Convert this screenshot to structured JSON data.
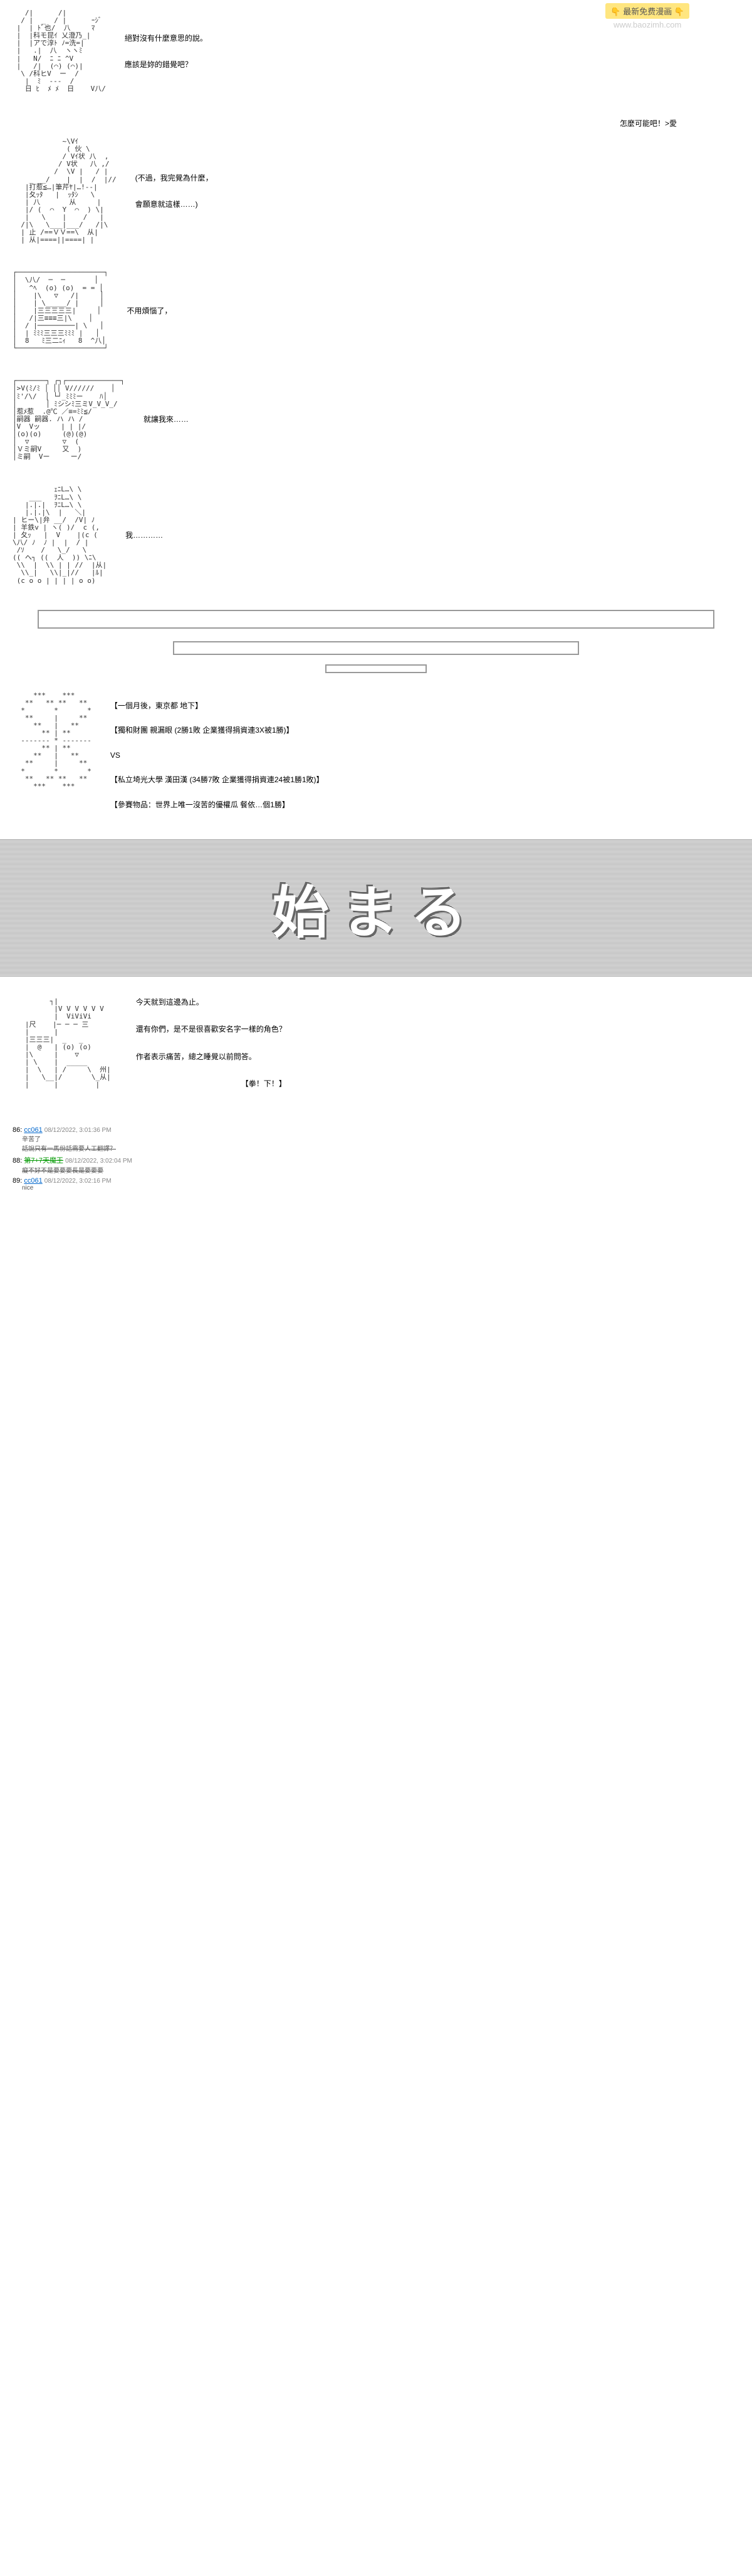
{
  "watermark": {
    "top": "👇 最新免费漫画 👇",
    "bottom": "www.baozimh.com"
  },
  "panel1": {
    "line1": "絕對沒有什麼意思的說。",
    "line2": "應該是妳的錯覺吧？",
    "line3": "怎麼可能吧！>愛"
  },
  "panel2": {
    "line1": "(不過，我完覺為什麼，",
    "line2": "會願意就這樣……)"
  },
  "panel3": {
    "line1": "不用煩惱了，"
  },
  "panel4": {
    "line1": "就讓我來……"
  },
  "panel5": {
    "line1": "我…………"
  },
  "info": {
    "l1": "【一個月後，東京都 地下】",
    "l2": "【獨和財團 親漏眼 (2勝1敗 企業獲得捐資連3X被1勝)】",
    "l3": "VS",
    "l4": "【私立埼光大學 漢田漢 (34勝7敗 企業獲得捐資連24被1勝1敗)】",
    "l5": "【參賽物品：世界上唯一沒苦的優權瓜 餐依…個1勝】"
  },
  "banner": {
    "text": "始まる"
  },
  "finale": {
    "l1": "今天就到這邊為止。",
    "l2": "還有你們，是不是很喜歡安名字一樣的角色？",
    "l3": "作者表示痛苦，總之睡覺以前問答。",
    "l4": "【拳！下！】"
  },
  "comments": {
    "c1": {
      "num": "86:",
      "user": "cc061",
      "date": "08/12/2022, 3:01:36 PM",
      "body": "辛苦了",
      "body2": "話說只有一馬份話需要人工翻譯？"
    },
    "c2": {
      "num": "88:",
      "user": "第7+7天魔王",
      "date": "08/12/2022, 3:02:04 PM",
      "body": "癡不好不是要要要長是要要要"
    },
    "c3": {
      "num": "89:",
      "user": "cc061",
      "date": "08/12/2022, 3:02:16 PM",
      "body": "nice"
    }
  },
  "ascii": {
    "a1": "   /|      /|\n  / |  _  / |      ｰｼﾞ\n |  | ﾄﾞ也/  八     ﾏ\n |  |科モ昆ｲ 乂澄乃_|\n |  |アで淳ﾄ ﾉ=洗=|\n |   .|  八  ヽヽﾐ\n |   N/  ﾆ ﾆ ^V\n |   /|  (⌒) (⌒)|\n  \\ /科ヒV  ー  /\n   |  ﾐ  ---  /\n   日 ﾋ  ﾒ ﾒ  日    V八/",
    "a2": "            ~\\Vｲ\n             ( 伙 \\\n            / Vｲ状 八  ,\n           / V状   八 ,/\n          /  \\V |   / |\n    _ __/    |  |  /  |//\n   |打惹≦…|筆芹ﾔ|…!--|   \n   |夂ｯﾀ   |  ｯﾀｼ   \\\n   | 八       从     |\n   |/ (  ⌒  Y  ⌒  ) \\|\n   |   \\    |    /   |\n  /|\\   \\___|___/   /|\\\n  | 止 /==ＶＶ==\\  从|\n  | 从|====||====| |",
    "a3": "┌─────────────────────┐\n│  \\八/  ─  ─       │\n│   ^ﾍ  (o) (o)  = = │\n│    |\\   ▽   /|     │\n│    | \\_____/ |     │\n│    |三三三三三|     │\n│   /|三≡≡≡三|\\    │\n│  / |─────────| \\   │\n│  | ﾐﾐﾐ三三三ﾐﾐﾐ |   │\n│  8   ﾐ三二ﾆｨ   8  ^八│\n└─────────────────────┘",
    "a4": "┌───────┐ ┌┐┌─────────────┐\n│>V(ﾐ/ﾐ │ ││ V//////    │\n│ﾐ'/\\/  │ └┘_ﾐﾐﾐー    ﾊ│\n│       │ ﾐシシﾐ三ミV_V_V_/\n│惹ﾒ惹  .@℃ ／≡=ﾐﾐ≦/\n│嗣器 嗣器. ハ ハ /\n│V  Vッ     | | |/\n│(o)(o)     (@)(@)\n│  ▽        ▽  (\n│Ｖミ嗣V     又  )\n│ミ嗣  Vー     ー/",
    "a5": "          ｪﾆL…\\ \\\n    ___   ｦﾆL…\\ \\\n   |.|.|  ｦﾆL…\\ \\\n   |.|.|\\  |   ＼|\n| ヒー\\|弁 __/  /V| ﾉ\n| 羊鉄v | ヽ( )/  c (,\n| 夂ｯ   |  V    |(c (\n\\八/ ﾉ  ﾉ |  |  / |\n /ｿ    /   \\_/   \\\n(( へ┐ ((  人  )) \\ﾆ\\\n \\\\  |  \\\\ | | //  |从|\n  \\\\_|   \\\\|_|//   |ﾙ|\n (c o o | | | | o o)",
    "a6": "     ***    ***\n   **   ** **   **\n  *       *       *\n   **     |     **\n     **   |   **\n       ** | **\n  ------- * -------\n       ** | **\n     **   |   **\n   **     |     **\n  *       *       *\n   **   ** **   **\n     ***    ***",
    "a7": "         ┐|\n          |V V V V V V\n          |  ViViVi\n   |尺    |─ ─ ─ 三\n   |      |\n   |三三三|  _   _\n   |  @   | (o) (o)\n   |\\     |    ▽\n   | \\    |  _____\n   |  \\   | /     \\  州|\n   |   \\__|/       \\_从|\n   |      |         |"
  },
  "colors": {
    "link": "#0066cc",
    "green": "#009900",
    "gray": "#888888"
  }
}
